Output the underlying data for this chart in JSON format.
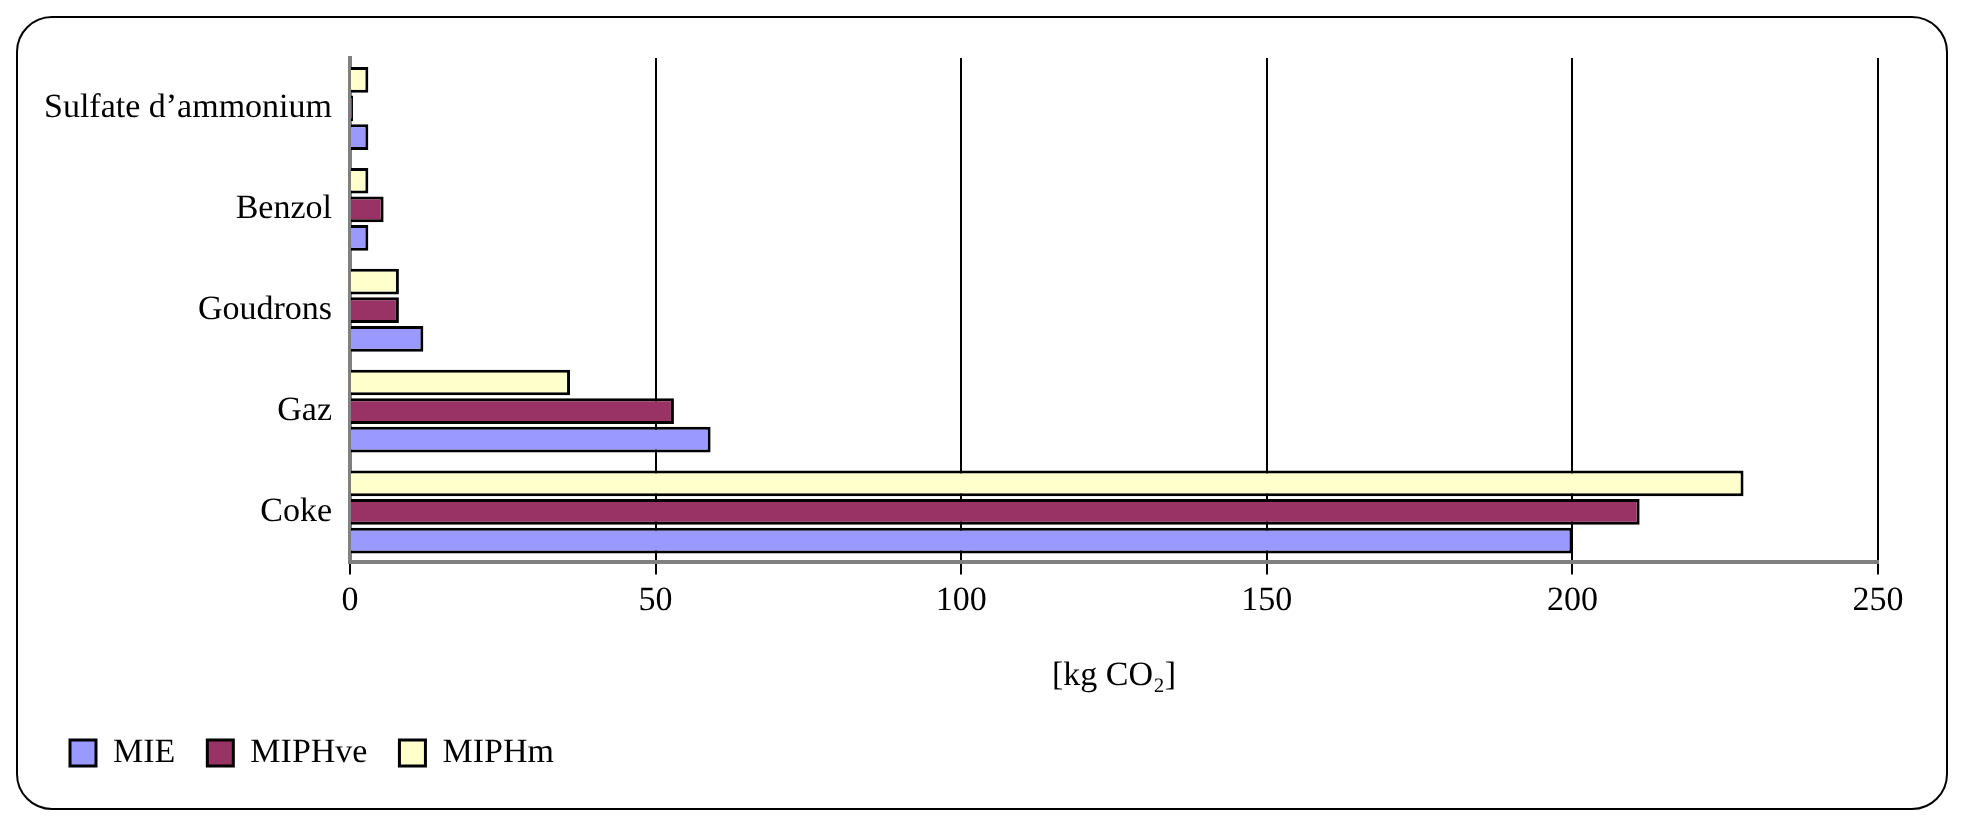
{
  "chart_data": {
    "type": "bar",
    "orientation": "horizontal",
    "xlabel": "[kg CO₂]",
    "categories": [
      "Sulfate d’ammonium",
      "Benzol",
      "Goudrons",
      "Gaz",
      "Coke"
    ],
    "series": [
      {
        "name": "MIE",
        "color": "#9999ff",
        "values": [
          3,
          3,
          12,
          59,
          200
        ]
      },
      {
        "name": "MIPHve",
        "color": "#993366",
        "values": [
          0.5,
          5.5,
          8,
          53,
          211
        ]
      },
      {
        "name": "MIPHm",
        "color": "#ffffcc",
        "values": [
          3,
          3,
          8,
          36,
          228
        ]
      }
    ],
    "xlim": [
      0,
      250
    ],
    "xticks": [
      0,
      50,
      100,
      150,
      200,
      250
    ],
    "grid": "x",
    "legend": "bottom left"
  }
}
